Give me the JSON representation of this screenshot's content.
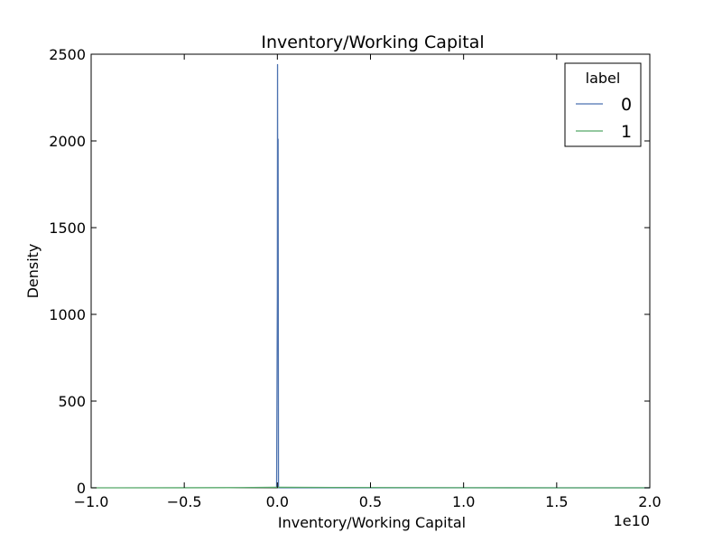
{
  "chart_data": {
    "type": "line",
    "title": "Inventory/Working Capital",
    "xlabel": "Inventory/Working Capital",
    "ylabel": "Density",
    "x_offset_label": "1e10",
    "xlim": [
      -1.0,
      2.0
    ],
    "ylim": [
      0,
      2500
    ],
    "x_ticks": [
      -1.0,
      -0.5,
      0.0,
      0.5,
      1.0,
      1.5,
      2.0
    ],
    "x_tick_labels": [
      "−1.0",
      "−0.5",
      "0.0",
      "0.5",
      "1.0",
      "1.5",
      "2.0"
    ],
    "y_ticks": [
      0,
      500,
      1000,
      1500,
      2000,
      2500
    ],
    "y_tick_labels": [
      "0",
      "500",
      "1000",
      "1500",
      "2000",
      "2500"
    ],
    "grid": false,
    "legend": {
      "title": "label",
      "placement": "top-right"
    },
    "series": [
      {
        "name": "0",
        "color": "#4c72b0",
        "x": [
          -0.004,
          0.0,
          0.001,
          0.002,
          0.004,
          0.006,
          0.5,
          1.0,
          1.5,
          2.0
        ],
        "y": [
          0,
          1100,
          2440,
          1400,
          2010,
          0,
          0,
          0,
          0,
          0
        ]
      },
      {
        "name": "1",
        "color": "#55a868",
        "x": [
          -1.0,
          -0.5,
          -0.2,
          0.0,
          0.3,
          0.6,
          1.0,
          1.25,
          1.5,
          2.0
        ],
        "y": [
          0,
          0.3,
          1.2,
          3.0,
          2.0,
          1.2,
          0.6,
          0.2,
          0,
          0
        ]
      }
    ]
  }
}
